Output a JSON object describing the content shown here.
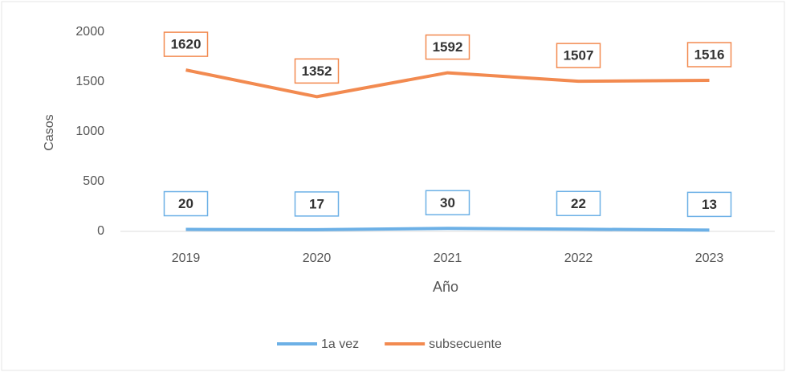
{
  "chart_data": {
    "type": "line",
    "x_label": "Año",
    "y_label": "Casos",
    "categories": [
      "2019",
      "2020",
      "2021",
      "2022",
      "2023"
    ],
    "series": [
      {
        "name": "1a vez",
        "color": "#6cb0e6",
        "values": [
          20,
          17,
          30,
          22,
          13
        ]
      },
      {
        "name": "subsecuente",
        "color": "#f28a50",
        "values": [
          1620,
          1352,
          1592,
          1507,
          1516
        ]
      }
    ],
    "ylim": [
      0,
      2000
    ],
    "yticks": [
      0,
      500,
      1000,
      1500,
      2000
    ],
    "grid": false
  }
}
